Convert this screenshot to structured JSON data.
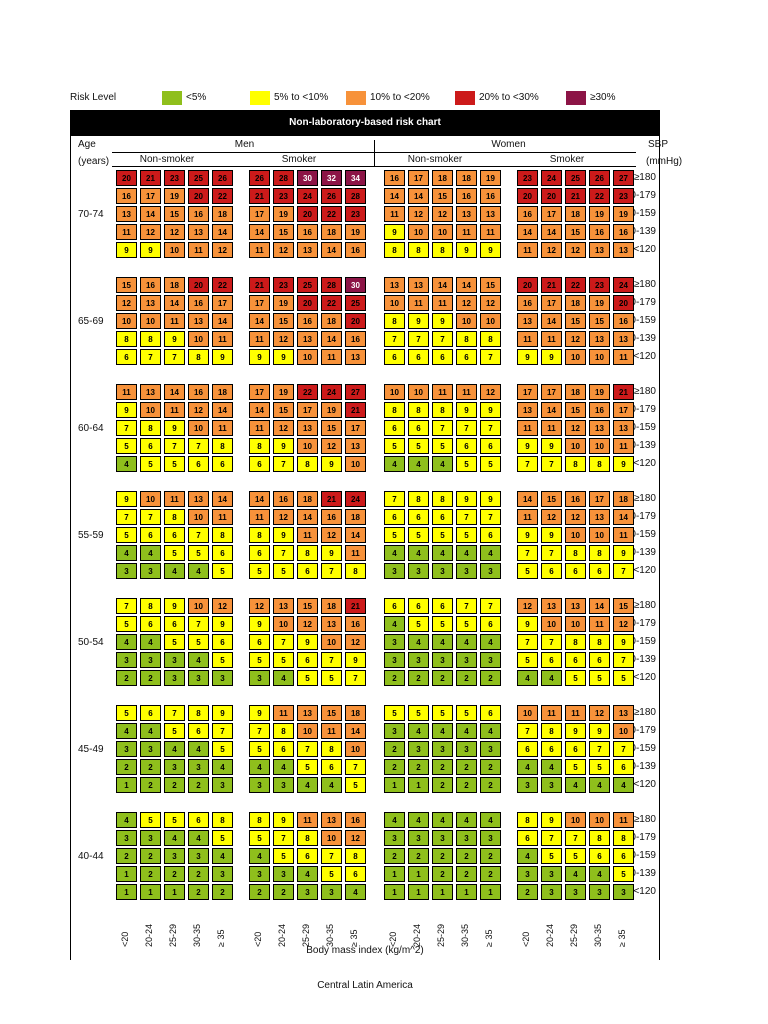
{
  "legend": {
    "title": "Risk Level",
    "items": [
      {
        "label": "<5%",
        "color": "#8fbf1c"
      },
      {
        "label": "5% to <10%",
        "color": "#ffff00"
      },
      {
        "label": "10% to <20%",
        "color": "#f7923a"
      },
      {
        "label": "20% to <30%",
        "color": "#cc1a1a"
      },
      {
        "label": "≥30%",
        "color": "#8c1446"
      }
    ]
  },
  "header": {
    "banner": "Non-laboratory-based risk chart",
    "age_label": "Age",
    "age_unit": "(years)",
    "men": "Men",
    "women": "Women",
    "non_smoker": "Non-smoker",
    "smoker": "Smoker",
    "sbp_label": "SBP",
    "sbp_unit": "(mmHg)"
  },
  "footer": "Central Latin America",
  "chart_data": {
    "type": "heatmap",
    "title": "Non-laboratory-based risk chart",
    "region": "Central Latin America",
    "xlabel": "Body mass index (kg/m^2)",
    "bmi_categories": [
      "<20",
      "20-24",
      "25-29",
      "30-35",
      "≥ 35"
    ],
    "sbp_categories": [
      "≥180",
      "160-179",
      "140-159",
      "120-139",
      "<120"
    ],
    "groups": [
      "Men Non-smoker",
      "Men Smoker",
      "Women Non-smoker",
      "Women Smoker"
    ],
    "age_bands": [
      {
        "age": "70-74",
        "values": [
          [
            [
              20,
              21,
              23,
              25,
              26
            ],
            [
              16,
              17,
              19,
              20,
              22
            ],
            [
              13,
              14,
              15,
              16,
              18
            ],
            [
              11,
              12,
              12,
              13,
              14
            ],
            [
              9,
              9,
              10,
              11,
              12
            ]
          ],
          [
            [
              26,
              28,
              30,
              32,
              34
            ],
            [
              21,
              23,
              24,
              26,
              28
            ],
            [
              17,
              19,
              20,
              22,
              23
            ],
            [
              14,
              15,
              16,
              18,
              19
            ],
            [
              11,
              12,
              13,
              14,
              16
            ]
          ],
          [
            [
              16,
              17,
              18,
              18,
              19
            ],
            [
              14,
              14,
              15,
              16,
              16
            ],
            [
              11,
              12,
              12,
              13,
              13
            ],
            [
              9,
              10,
              10,
              11,
              11
            ],
            [
              8,
              8,
              8,
              9,
              9
            ]
          ],
          [
            [
              23,
              24,
              25,
              26,
              27
            ],
            [
              20,
              20,
              21,
              22,
              23
            ],
            [
              16,
              17,
              18,
              19,
              19
            ],
            [
              14,
              14,
              15,
              16,
              16
            ],
            [
              11,
              12,
              12,
              13,
              13
            ]
          ]
        ]
      },
      {
        "age": "65-69",
        "values": [
          [
            [
              15,
              16,
              18,
              20,
              22
            ],
            [
              12,
              13,
              14,
              16,
              17
            ],
            [
              10,
              10,
              11,
              13,
              14
            ],
            [
              8,
              8,
              9,
              10,
              11
            ],
            [
              6,
              7,
              7,
              8,
              9
            ]
          ],
          [
            [
              21,
              23,
              25,
              28,
              30
            ],
            [
              17,
              19,
              20,
              22,
              25
            ],
            [
              14,
              15,
              16,
              18,
              20
            ],
            [
              11,
              12,
              13,
              14,
              16
            ],
            [
              9,
              9,
              10,
              11,
              13
            ]
          ],
          [
            [
              13,
              13,
              14,
              14,
              15
            ],
            [
              10,
              11,
              11,
              12,
              12
            ],
            [
              8,
              9,
              9,
              10,
              10
            ],
            [
              7,
              7,
              7,
              8,
              8
            ],
            [
              6,
              6,
              6,
              6,
              7
            ]
          ],
          [
            [
              20,
              21,
              22,
              23,
              24
            ],
            [
              16,
              17,
              18,
              19,
              20
            ],
            [
              13,
              14,
              15,
              15,
              16
            ],
            [
              11,
              11,
              12,
              13,
              13
            ],
            [
              9,
              9,
              10,
              10,
              11
            ]
          ]
        ]
      },
      {
        "age": "60-64",
        "values": [
          [
            [
              11,
              13,
              14,
              16,
              18
            ],
            [
              9,
              10,
              11,
              12,
              14
            ],
            [
              7,
              8,
              9,
              10,
              11
            ],
            [
              5,
              6,
              7,
              7,
              8
            ],
            [
              4,
              5,
              5,
              6,
              6
            ]
          ],
          [
            [
              17,
              19,
              22,
              24,
              27
            ],
            [
              14,
              15,
              17,
              19,
              21
            ],
            [
              11,
              12,
              13,
              15,
              17
            ],
            [
              8,
              9,
              10,
              12,
              13
            ],
            [
              6,
              7,
              8,
              9,
              10
            ]
          ],
          [
            [
              10,
              10,
              11,
              11,
              12
            ],
            [
              8,
              8,
              8,
              9,
              9
            ],
            [
              6,
              6,
              7,
              7,
              7
            ],
            [
              5,
              5,
              5,
              6,
              6
            ],
            [
              4,
              4,
              4,
              5,
              5
            ]
          ],
          [
            [
              17,
              17,
              18,
              19,
              21
            ],
            [
              13,
              14,
              15,
              16,
              17
            ],
            [
              11,
              11,
              12,
              13,
              13
            ],
            [
              9,
              9,
              10,
              10,
              11
            ],
            [
              7,
              7,
              8,
              8,
              9
            ]
          ]
        ]
      },
      {
        "age": "55-59",
        "values": [
          [
            [
              9,
              10,
              11,
              13,
              14
            ],
            [
              7,
              7,
              8,
              10,
              11
            ],
            [
              5,
              6,
              6,
              7,
              8
            ],
            [
              4,
              4,
              5,
              5,
              6
            ],
            [
              3,
              3,
              4,
              4,
              5
            ]
          ],
          [
            [
              14,
              16,
              18,
              21,
              24
            ],
            [
              11,
              12,
              14,
              16,
              18
            ],
            [
              8,
              9,
              11,
              12,
              14
            ],
            [
              6,
              7,
              8,
              9,
              11
            ],
            [
              5,
              5,
              6,
              7,
              8
            ]
          ],
          [
            [
              7,
              8,
              8,
              9,
              9
            ],
            [
              6,
              6,
              6,
              7,
              7
            ],
            [
              5,
              5,
              5,
              5,
              6
            ],
            [
              4,
              4,
              4,
              4,
              4
            ],
            [
              3,
              3,
              3,
              3,
              3
            ]
          ],
          [
            [
              14,
              15,
              16,
              17,
              18
            ],
            [
              11,
              12,
              12,
              13,
              14
            ],
            [
              9,
              9,
              10,
              10,
              11
            ],
            [
              7,
              7,
              8,
              8,
              9
            ],
            [
              5,
              6,
              6,
              6,
              7
            ]
          ]
        ]
      },
      {
        "age": "50-54",
        "values": [
          [
            [
              7,
              8,
              9,
              10,
              12
            ],
            [
              5,
              6,
              6,
              7,
              9
            ],
            [
              4,
              4,
              5,
              5,
              6
            ],
            [
              3,
              3,
              3,
              4,
              5
            ],
            [
              2,
              2,
              3,
              3,
              3
            ]
          ],
          [
            [
              12,
              13,
              15,
              18,
              21
            ],
            [
              9,
              10,
              12,
              13,
              16
            ],
            [
              6,
              7,
              9,
              10,
              12
            ],
            [
              5,
              5,
              6,
              7,
              9
            ],
            [
              3,
              4,
              5,
              5,
              7
            ]
          ],
          [
            [
              6,
              6,
              6,
              7,
              7
            ],
            [
              4,
              5,
              5,
              5,
              6
            ],
            [
              3,
              4,
              4,
              4,
              4
            ],
            [
              3,
              3,
              3,
              3,
              3
            ],
            [
              2,
              2,
              2,
              2,
              2
            ]
          ],
          [
            [
              12,
              13,
              13,
              14,
              15
            ],
            [
              9,
              10,
              10,
              11,
              12
            ],
            [
              7,
              7,
              8,
              8,
              9
            ],
            [
              5,
              6,
              6,
              6,
              7
            ],
            [
              4,
              4,
              5,
              5,
              5
            ]
          ]
        ]
      },
      {
        "age": "45-49",
        "values": [
          [
            [
              5,
              6,
              7,
              8,
              9
            ],
            [
              4,
              4,
              5,
              6,
              7
            ],
            [
              3,
              3,
              4,
              4,
              5
            ],
            [
              2,
              2,
              3,
              3,
              4
            ],
            [
              1,
              2,
              2,
              2,
              3
            ]
          ],
          [
            [
              9,
              11,
              13,
              15,
              18
            ],
            [
              7,
              8,
              10,
              11,
              14
            ],
            [
              5,
              6,
              7,
              8,
              10
            ],
            [
              4,
              4,
              5,
              6,
              7
            ],
            [
              3,
              3,
              4,
              4,
              5
            ]
          ],
          [
            [
              5,
              5,
              5,
              5,
              6
            ],
            [
              3,
              4,
              4,
              4,
              4
            ],
            [
              2,
              3,
              3,
              3,
              3
            ],
            [
              2,
              2,
              2,
              2,
              2
            ],
            [
              1,
              1,
              2,
              2,
              2
            ]
          ],
          [
            [
              10,
              11,
              11,
              12,
              13
            ],
            [
              7,
              8,
              9,
              9,
              10
            ],
            [
              6,
              6,
              6,
              7,
              7
            ],
            [
              4,
              4,
              5,
              5,
              6
            ],
            [
              3,
              3,
              4,
              4,
              4
            ]
          ]
        ]
      },
      {
        "age": "40-44",
        "values": [
          [
            [
              4,
              5,
              5,
              6,
              8
            ],
            [
              3,
              3,
              4,
              4,
              5
            ],
            [
              2,
              2,
              3,
              3,
              4
            ],
            [
              1,
              2,
              2,
              2,
              3
            ],
            [
              1,
              1,
              1,
              2,
              2
            ]
          ],
          [
            [
              8,
              9,
              11,
              13,
              16
            ],
            [
              5,
              7,
              8,
              10,
              12
            ],
            [
              4,
              5,
              6,
              7,
              8
            ],
            [
              3,
              3,
              4,
              5,
              6
            ],
            [
              2,
              2,
              3,
              3,
              4
            ]
          ],
          [
            [
              4,
              4,
              4,
              4,
              4
            ],
            [
              3,
              3,
              3,
              3,
              3
            ],
            [
              2,
              2,
              2,
              2,
              2
            ],
            [
              1,
              1,
              2,
              2,
              2
            ],
            [
              1,
              1,
              1,
              1,
              1
            ]
          ],
          [
            [
              8,
              9,
              10,
              10,
              11
            ],
            [
              6,
              7,
              7,
              8,
              8
            ],
            [
              4,
              5,
              5,
              6,
              6
            ],
            [
              3,
              3,
              4,
              4,
              5
            ],
            [
              2,
              3,
              3,
              3,
              3
            ]
          ]
        ]
      }
    ]
  }
}
